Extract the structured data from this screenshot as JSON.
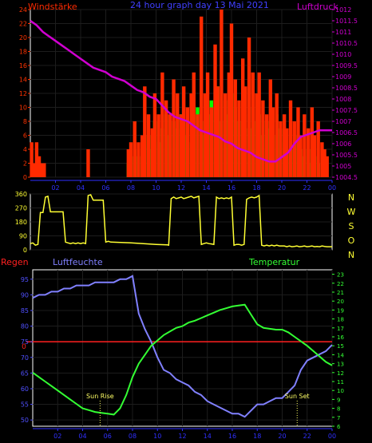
{
  "header": {
    "left": "Windstärke",
    "center": "24 hour graph day 13 Mai 2021",
    "right": "Luftdruck"
  },
  "colors": {
    "wind": "#ff2a00",
    "gust": "#00ff00",
    "pressure": "#d000d0",
    "direction": "#ffff33",
    "humidity": "#8080ff",
    "temperature": "#33ff33",
    "rain": "#ff2020",
    "axis_left_1": "#ff3300",
    "axis_right_1": "#d000d0",
    "axis_left_3": "#5050ff",
    "axis_right_3": "#33ff33",
    "grid": "#1d1d1d",
    "frame": "#ffffff",
    "timeaxis": "#3030ff"
  },
  "time_ticks": [
    "02",
    "04",
    "06",
    "08",
    "10",
    "12",
    "14",
    "16",
    "18",
    "20",
    "22",
    "00"
  ],
  "panel3": {
    "regen_label": "Regen",
    "humidity_label": "Luftfeuchte",
    "temperature_label": "Temperatur",
    "sun_rise": "Sun Rise",
    "sun_set": "Sun Set",
    "rain_axis_label": "0"
  },
  "direction_axis": [
    "N",
    "W",
    "S",
    "O",
    "N"
  ],
  "chart_data": [
    {
      "type": "bar",
      "title": "24 hour graph day 13 Mai 2021",
      "x_range": [
        0,
        24
      ],
      "y_left_label": "Windstärke",
      "y_left_ticks": [
        "0",
        "2",
        "4",
        "6",
        "8",
        "10",
        "12",
        "14",
        "16",
        "18",
        "20",
        "22",
        "24"
      ],
      "y_left_lim": [
        0,
        24
      ],
      "y_right_label": "Luftdruck",
      "y_right_ticks": [
        "1004.5",
        "1005",
        "1005.5",
        "1006",
        "1006.5",
        "1007",
        "1007.5",
        "1008",
        "1008.5",
        "1009",
        "1009.5",
        "1010",
        "1010.5",
        "1011",
        "1011.5",
        "1012"
      ],
      "y_right_lim": [
        1004.5,
        1012
      ],
      "series": [
        {
          "name": "Luftdruck",
          "kind": "line",
          "x": [
            0,
            0.5,
            1,
            1.5,
            2,
            2.5,
            3,
            3.5,
            4,
            4.5,
            5,
            5.5,
            6,
            6.5,
            7,
            7.5,
            8,
            8.5,
            9,
            9.5,
            10,
            10.5,
            11,
            11.5,
            12,
            12.5,
            13,
            13.5,
            14,
            14.5,
            15,
            15.5,
            16,
            16.5,
            17,
            17.5,
            18,
            18.5,
            19,
            19.5,
            20,
            20.5,
            21,
            21.5,
            22,
            22.5,
            23,
            23.5,
            24
          ],
          "values": [
            1011.5,
            1011.3,
            1011,
            1010.8,
            1010.6,
            1010.4,
            1010.2,
            1010,
            1009.8,
            1009.6,
            1009.4,
            1009.3,
            1009.2,
            1009,
            1008.9,
            1008.8,
            1008.6,
            1008.4,
            1008.3,
            1008.1,
            1008,
            1007.7,
            1007.4,
            1007.2,
            1007.1,
            1007,
            1006.8,
            1006.6,
            1006.5,
            1006.4,
            1006.3,
            1006.1,
            1006,
            1005.8,
            1005.7,
            1005.6,
            1005.4,
            1005.3,
            1005.2,
            1005.2,
            1005.4,
            1005.6,
            1006,
            1006.3,
            1006.4,
            1006.5,
            1006.6,
            1006.6,
            1006.6
          ]
        },
        {
          "name": "Wind",
          "kind": "bars",
          "hours": [
            0.1,
            0.3,
            0.5,
            0.7,
            0.9,
            1.1,
            4.6,
            7.8,
            8.0,
            8.3,
            8.6,
            8.9,
            9.1,
            9.4,
            9.7,
            9.9,
            10.2,
            10.5,
            10.8,
            11.1,
            11.4,
            11.7,
            12.0,
            12.2,
            12.5,
            12.8,
            13.0,
            13.3,
            13.6,
            13.9,
            14.1,
            14.4,
            14.7,
            14.9,
            15.2,
            15.5,
            15.8,
            16.0,
            16.3,
            16.6,
            16.9,
            17.1,
            17.4,
            17.7,
            18.0,
            18.2,
            18.5,
            18.8,
            19.1,
            19.3,
            19.6,
            19.9,
            20.2,
            20.4,
            20.7,
            21.0,
            21.3,
            21.5,
            21.8,
            22.1,
            22.4,
            22.6,
            22.9,
            23.2,
            23.4,
            23.6
          ],
          "values": [
            5,
            2,
            5,
            3,
            2,
            2,
            4,
            4,
            5,
            8,
            5,
            6,
            13,
            9,
            7,
            12,
            9,
            15,
            11,
            9,
            14,
            12,
            9,
            13,
            10,
            12,
            15,
            9,
            23,
            12,
            15,
            10,
            19,
            13,
            24,
            12,
            15,
            22,
            14,
            11,
            17,
            13,
            20,
            15,
            12,
            15,
            11,
            9,
            14,
            10,
            12,
            8,
            9,
            7,
            11,
            8,
            10,
            6,
            9,
            7,
            10,
            6,
            8,
            5,
            4,
            3
          ]
        },
        {
          "name": "Böen",
          "kind": "bars",
          "hours": [
            7.8,
            8.0,
            8.3,
            8.6,
            8.9,
            9.1,
            9.4,
            9.7,
            9.9,
            10.2,
            10.5,
            10.8,
            11.1,
            11.4,
            11.7,
            12.0,
            12.2,
            12.5,
            12.8,
            13.0,
            13.3,
            13.6,
            13.9,
            14.1,
            14.4,
            14.7,
            14.9,
            15.2,
            15.5,
            15.8,
            16.0,
            16.3,
            16.6,
            16.9,
            17.1,
            17.4,
            17.7,
            18.0,
            18.2,
            18.5,
            18.8,
            19.1,
            19.3,
            19.6,
            19.9,
            20.2,
            20.4,
            20.7,
            21.0,
            21.3,
            21.5,
            21.8,
            22.1,
            22.4,
            22.6,
            22.9
          ],
          "values": [
            2,
            3,
            4,
            3,
            4,
            5,
            6,
            4,
            8,
            5,
            7,
            9,
            6,
            8,
            7,
            9,
            6,
            8,
            5,
            7,
            10,
            6,
            8,
            9,
            11,
            10,
            13,
            8,
            11,
            9,
            12,
            10,
            8,
            11,
            9,
            7,
            10,
            8,
            9,
            6,
            8,
            7,
            6,
            9,
            7,
            5,
            6,
            4,
            5,
            6,
            4,
            3,
            4,
            2,
            3,
            2
          ]
        }
      ]
    },
    {
      "type": "line",
      "title": "",
      "x_range": [
        0,
        24
      ],
      "y_left_ticks": [
        "0",
        "90",
        "180",
        "270",
        "360"
      ],
      "y_left_lim": [
        0,
        360
      ],
      "y_right_ticks": [
        "N",
        "W",
        "S",
        "O",
        "N"
      ],
      "series": [
        {
          "name": "Windrichtung",
          "x": [
            0,
            0.2,
            0.4,
            0.6,
            0.8,
            1.0,
            1.2,
            1.4,
            1.6,
            2.4,
            2.6,
            2.8,
            3.0,
            3.2,
            3.4,
            3.6,
            3.8,
            4.0,
            4.2,
            4.4,
            4.6,
            4.8,
            5.0,
            5.2,
            5.4,
            5.6,
            5.8,
            6.0,
            6.2,
            6.4,
            8.0,
            9.0,
            10.0,
            10.9,
            11.0,
            11.2,
            11.4,
            11.6,
            11.8,
            12.0,
            12.2,
            12.4,
            12.6,
            12.8,
            13.0,
            13.2,
            13.4,
            13.6,
            13.8,
            14.0,
            14.2,
            14.4,
            14.6,
            14.8,
            15.0,
            15.2,
            15.4,
            15.6,
            15.8,
            16.0,
            16.2,
            16.4,
            16.6,
            16.8,
            17.0,
            17.2,
            17.4,
            17.6,
            17.8,
            18.0,
            18.2,
            18.4,
            18.6,
            18.8,
            19.0,
            19.2,
            19.4,
            19.6,
            19.8,
            20.0,
            20.2,
            20.4,
            20.6,
            20.8,
            21.0,
            21.2,
            21.4,
            21.6,
            21.8,
            22.0,
            22.2,
            22.4,
            22.6,
            22.8,
            23.0,
            23.2,
            23.4,
            23.6,
            23.8,
            24.0
          ],
          "values": [
            40,
            45,
            30,
            35,
            240,
            240,
            340,
            345,
            245,
            245,
            245,
            50,
            45,
            40,
            45,
            40,
            45,
            40,
            45,
            40,
            350,
            355,
            320,
            320,
            320,
            320,
            320,
            50,
            55,
            50,
            45,
            40,
            35,
            32,
            30,
            330,
            340,
            330,
            335,
            340,
            330,
            335,
            340,
            345,
            335,
            340,
            345,
            35,
            40,
            45,
            40,
            38,
            35,
            340,
            330,
            335,
            330,
            335,
            330,
            340,
            30,
            35,
            35,
            30,
            35,
            325,
            335,
            340,
            335,
            340,
            350,
            30,
            25,
            30,
            25,
            30,
            25,
            30,
            25,
            25,
            25,
            20,
            25,
            20,
            22,
            25,
            20,
            22,
            25,
            20,
            22,
            25,
            20,
            22,
            20,
            25,
            22,
            20,
            20,
            20
          ]
        }
      ]
    },
    {
      "type": "line",
      "title": "",
      "x_range": [
        0,
        24
      ],
      "y_left_label": "Luftfeuchte",
      "y_left_ticks": [
        "50",
        "55",
        "60",
        "65",
        "70",
        "75",
        "80",
        "85",
        "90",
        "95"
      ],
      "y_left_lim": [
        48,
        98
      ],
      "y_right_label": "Temperatur",
      "y_right_ticks": [
        "6",
        "7",
        "8",
        "9",
        "10",
        "11",
        "12",
        "13",
        "14",
        "15",
        "16",
        "17",
        "18",
        "19",
        "20",
        "21",
        "22",
        "23"
      ],
      "y_right_lim": [
        6,
        23.5
      ],
      "rain_marker_label": "0",
      "sun_rise_hour": 5.4,
      "sun_set_hour": 21.2,
      "series": [
        {
          "name": "Luftfeuchte",
          "x": [
            0,
            0.5,
            1,
            1.5,
            2,
            2.5,
            3,
            3.5,
            4,
            4.5,
            5,
            5.5,
            6,
            6.5,
            7,
            7.5,
            8,
            8.5,
            9,
            9.5,
            10,
            10.5,
            11,
            11.5,
            12,
            12.5,
            13,
            13.5,
            14,
            14.5,
            15,
            15.5,
            16,
            16.5,
            17,
            17.5,
            18,
            18.5,
            19,
            19.5,
            20,
            20.5,
            21,
            21.5,
            22,
            22.5,
            23,
            23.5,
            24
          ],
          "values": [
            89,
            90,
            90,
            91,
            91,
            92,
            92,
            93,
            93,
            93,
            94,
            94,
            94,
            94,
            95,
            95,
            96,
            84,
            79,
            75,
            70,
            66,
            65,
            63,
            62,
            61,
            59,
            58,
            56,
            55,
            54,
            53,
            52,
            52,
            51,
            53,
            55,
            55,
            56,
            57,
            57,
            59,
            61,
            66,
            69,
            70,
            71,
            72,
            74
          ]
        },
        {
          "name": "Temperatur",
          "x": [
            0,
            0.5,
            1,
            1.5,
            2,
            2.5,
            3,
            3.5,
            4,
            4.5,
            5,
            5.5,
            6,
            6.5,
            7,
            7.5,
            8,
            8.5,
            9,
            9.5,
            10,
            10.5,
            11,
            11.5,
            12,
            12.5,
            13,
            13.5,
            14,
            14.5,
            15,
            15.5,
            16,
            16.5,
            17,
            17.5,
            18,
            18.5,
            19,
            19.5,
            20,
            20.5,
            21,
            21.5,
            22,
            22.5,
            23,
            23.5,
            24
          ],
          "values": [
            12,
            11.5,
            11,
            10.5,
            10,
            9.5,
            9,
            8.5,
            8,
            7.8,
            7.6,
            7.5,
            7.4,
            7.3,
            8,
            9.5,
            11.5,
            13,
            14,
            15,
            15.6,
            16.2,
            16.6,
            17,
            17.2,
            17.6,
            17.8,
            18.1,
            18.4,
            18.7,
            19,
            19.2,
            19.4,
            19.5,
            19.6,
            18.5,
            17.4,
            17,
            16.9,
            16.8,
            16.8,
            16.5,
            16,
            15.5,
            15,
            14.4,
            13.8,
            13.2,
            12.8
          ]
        }
      ]
    }
  ]
}
